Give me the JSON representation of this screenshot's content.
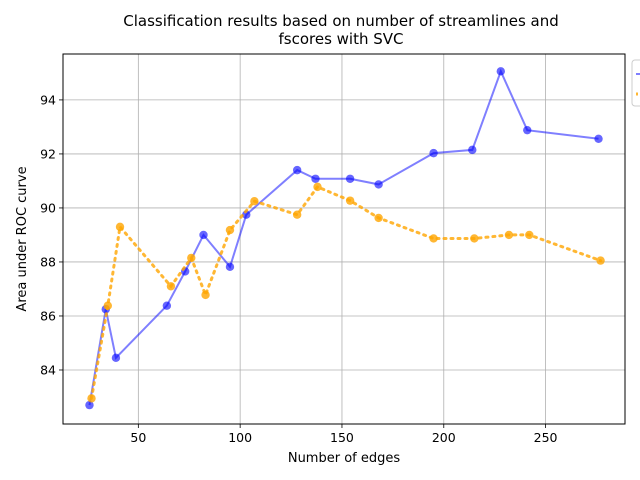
{
  "chart_data": {
    "type": "line",
    "title_lines": [
      "Classification results based on number of streamlines and",
      "fscores with SVC"
    ],
    "xlabel": "Number of edges",
    "ylabel": "Area under ROC curve",
    "xlim": [
      13,
      289
    ],
    "ylim": [
      82.0,
      95.7
    ],
    "xticks": [
      50,
      100,
      150,
      200,
      250
    ],
    "yticks": [
      84,
      86,
      88,
      90,
      92,
      94
    ],
    "grid": true,
    "legend_position": "right, partially cut off",
    "series": [
      {
        "color": "#0000ff",
        "line_style": "solid",
        "x": [
          26,
          34,
          39,
          64,
          73,
          82,
          95,
          103,
          128,
          137,
          154,
          168,
          195,
          214,
          228,
          241,
          276
        ],
        "y": [
          82.7,
          86.25,
          84.45,
          86.38,
          87.65,
          89.0,
          87.82,
          89.75,
          91.4,
          91.08,
          91.08,
          90.87,
          92.03,
          92.15,
          95.06,
          92.88,
          92.56
        ]
      },
      {
        "color": "#ffa500",
        "line_style": "dotted",
        "x": [
          27,
          35,
          41,
          66,
          76,
          83,
          95,
          107,
          128,
          138,
          154,
          168,
          195,
          215,
          232,
          242,
          277
        ],
        "y": [
          82.95,
          86.38,
          89.3,
          87.1,
          88.15,
          86.78,
          89.18,
          90.25,
          89.75,
          90.78,
          90.27,
          89.63,
          88.87,
          88.87,
          89.0,
          89.0,
          88.05
        ]
      }
    ]
  }
}
